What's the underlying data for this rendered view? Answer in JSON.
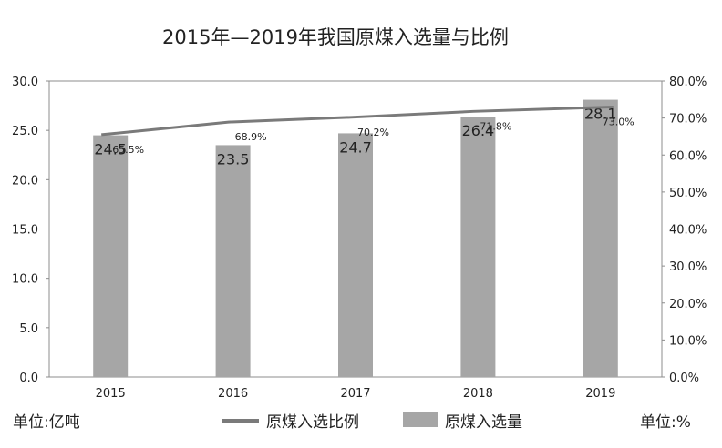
{
  "chart_data": {
    "type": "bar",
    "title": "2015年—2019年我国原煤入选量与比例",
    "categories": [
      "2015",
      "2016",
      "2017",
      "2018",
      "2019"
    ],
    "series": [
      {
        "name": "原煤入选量",
        "type": "bar",
        "axis": "left",
        "values": [
          24.5,
          23.5,
          24.7,
          26.4,
          28.1
        ],
        "labels": [
          "24.5",
          "23.5",
          "24.7",
          "26.4",
          "28.1"
        ],
        "color": "#a6a6a6"
      },
      {
        "name": "原煤入选比例",
        "type": "line",
        "axis": "right",
        "values": [
          65.5,
          68.9,
          70.2,
          71.8,
          73.0
        ],
        "labels": [
          "65.5%",
          "68.9%",
          "70.2%",
          "71.8%",
          "73.0%"
        ],
        "color": "#7a7a7a"
      }
    ],
    "y_left": {
      "range": [
        0,
        30
      ],
      "ticks": [
        0,
        5,
        10,
        15,
        20,
        25,
        30
      ],
      "tick_labels": [
        "0.0",
        "5.0",
        "10.0",
        "15.0",
        "20.0",
        "25.0",
        "30.0"
      ]
    },
    "y_right": {
      "range": [
        0,
        80
      ],
      "ticks": [
        0,
        10,
        20,
        30,
        40,
        50,
        60,
        70,
        80
      ],
      "tick_labels": [
        "0.0%",
        "10.0%",
        "20.0%",
        "30.0%",
        "40.0%",
        "50.0%",
        "60.0%",
        "70.0%",
        "80.0%"
      ]
    },
    "grid": false,
    "legend_position": "bottom"
  },
  "footer": {
    "left_unit": "单位:亿吨",
    "right_unit": "单位:%"
  }
}
